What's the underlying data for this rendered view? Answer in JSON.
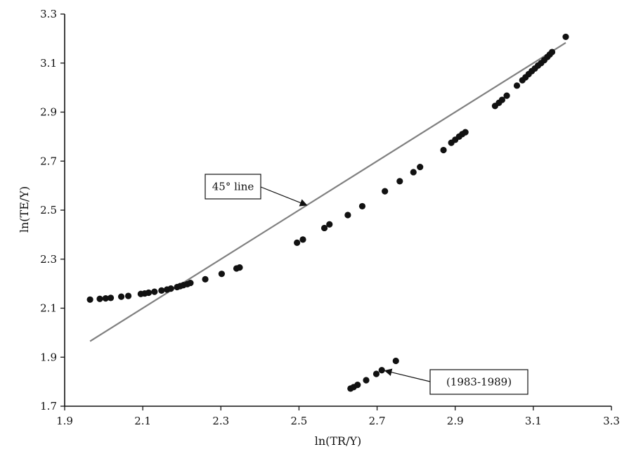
{
  "chart_data": {
    "type": "scatter",
    "title": "",
    "xlabel": "ln(TR/Y)",
    "ylabel": "ln(TE/Y)",
    "xlim": [
      1.9,
      3.3
    ],
    "ylim": [
      1.7,
      3.3
    ],
    "xticks": [
      "1.9",
      "2.1",
      "2.3",
      "2.5",
      "2.7",
      "2.9",
      "3.1",
      "3.3"
    ],
    "yticks": [
      "1.7",
      "1.9",
      "2.1",
      "2.3",
      "2.5",
      "2.7",
      "2.9",
      "3.1",
      "3.3"
    ],
    "grid": false,
    "series": [
      {
        "points": [
          [
            1.965,
            2.135
          ],
          [
            1.99,
            2.138
          ],
          [
            2.005,
            2.14
          ],
          [
            2.018,
            2.142
          ],
          [
            2.045,
            2.147
          ],
          [
            2.063,
            2.15
          ],
          [
            2.095,
            2.158
          ],
          [
            2.105,
            2.16
          ],
          [
            2.115,
            2.163
          ],
          [
            2.13,
            2.167
          ],
          [
            2.148,
            2.172
          ],
          [
            2.162,
            2.176
          ],
          [
            2.172,
            2.18
          ],
          [
            2.188,
            2.186
          ],
          [
            2.196,
            2.19
          ],
          [
            2.204,
            2.194
          ],
          [
            2.214,
            2.198
          ],
          [
            2.222,
            2.203
          ],
          [
            2.26,
            2.218
          ],
          [
            2.302,
            2.24
          ],
          [
            2.34,
            2.262
          ],
          [
            2.348,
            2.266
          ],
          [
            2.495,
            2.367
          ],
          [
            2.51,
            2.38
          ],
          [
            2.565,
            2.427
          ],
          [
            2.578,
            2.442
          ],
          [
            2.625,
            2.48
          ],
          [
            2.662,
            2.516
          ],
          [
            2.72,
            2.577
          ],
          [
            2.758,
            2.618
          ],
          [
            2.793,
            2.655
          ],
          [
            2.81,
            2.676
          ],
          [
            2.87,
            2.745
          ],
          [
            2.89,
            2.775
          ],
          [
            2.9,
            2.787
          ],
          [
            2.91,
            2.8
          ],
          [
            2.918,
            2.81
          ],
          [
            2.926,
            2.818
          ],
          [
            3.002,
            2.925
          ],
          [
            3.012,
            2.938
          ],
          [
            3.02,
            2.95
          ],
          [
            3.032,
            2.967
          ],
          [
            3.058,
            3.008
          ],
          [
            3.072,
            3.03
          ],
          [
            3.08,
            3.042
          ],
          [
            3.088,
            3.055
          ],
          [
            3.096,
            3.067
          ],
          [
            3.104,
            3.078
          ],
          [
            3.112,
            3.09
          ],
          [
            3.12,
            3.1
          ],
          [
            3.128,
            3.112
          ],
          [
            3.136,
            3.125
          ],
          [
            3.142,
            3.135
          ],
          [
            3.148,
            3.145
          ],
          [
            3.183,
            3.207
          ]
        ]
      },
      {
        "points": [
          [
            2.632,
            1.772
          ],
          [
            2.64,
            1.778
          ],
          [
            2.65,
            1.787
          ],
          [
            2.672,
            1.806
          ],
          [
            2.698,
            1.832
          ],
          [
            2.712,
            1.847
          ],
          [
            2.748,
            1.885
          ]
        ]
      }
    ],
    "reference_line": {
      "label": "45° line",
      "from": [
        1.965,
        1.965
      ],
      "to": [
        3.183,
        3.183
      ],
      "color": "#808080"
    },
    "annotations": [
      {
        "text": "45° line",
        "target": [
          2.52,
          2.52
        ]
      },
      {
        "text": "(1983-1989)",
        "target": [
          2.72,
          1.845
        ]
      }
    ],
    "colors": {
      "points": "#111111",
      "line": "#808080",
      "axis": "#111111"
    }
  }
}
